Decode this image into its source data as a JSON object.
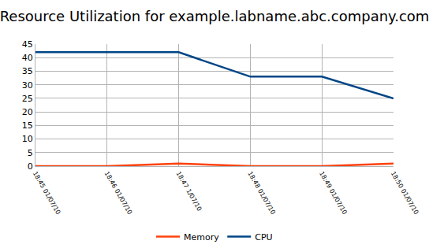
{
  "chart_data": {
    "type": "line",
    "title": "Resource Utilization for example.labname.abc.company.com",
    "categories": [
      "18:45 01/07/10",
      "18:46 01/07/10",
      "18:47 1/07/10",
      "18:48 01/07/10",
      "18:49 01/07/10",
      "18:50 01/07/10"
    ],
    "series": [
      {
        "name": "Memory",
        "color": "#ff420e",
        "values": [
          0,
          0,
          1,
          0,
          0,
          1
        ]
      },
      {
        "name": "CPU",
        "color": "#004586",
        "values": [
          42,
          42,
          42,
          33,
          33,
          25
        ]
      }
    ],
    "ylim": [
      0,
      45
    ],
    "yticks": [
      0,
      5,
      10,
      15,
      20,
      25,
      30,
      35,
      40,
      45
    ],
    "grid": true,
    "legend": "bottom"
  }
}
